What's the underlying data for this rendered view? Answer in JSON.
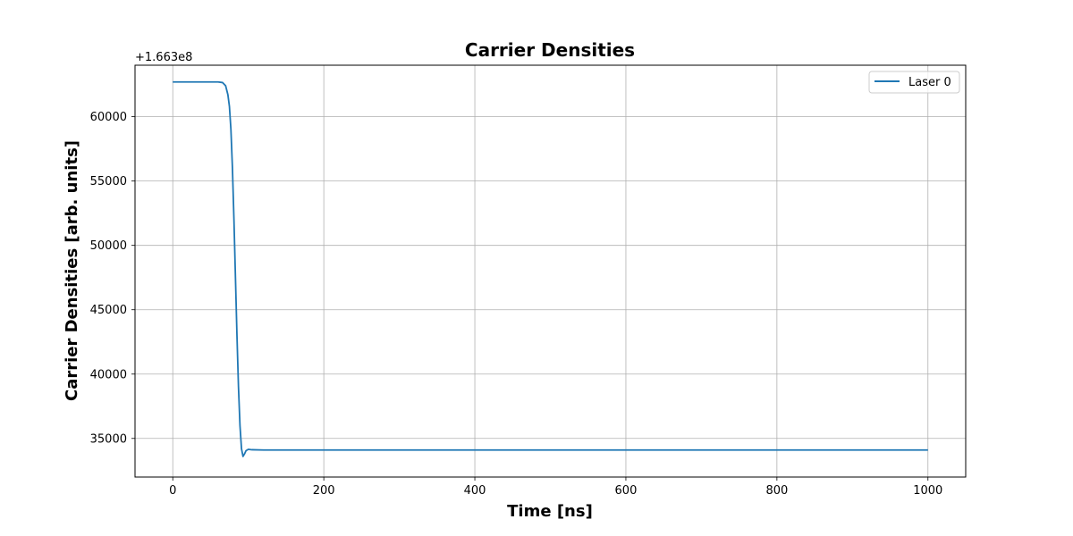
{
  "chart_data": {
    "type": "line",
    "title": "Carrier Densities",
    "xlabel": "Time [ns]",
    "ylabel": "Carrier Densities [arb. units]",
    "offset_label": "+1.663e8",
    "xlim": [
      -50,
      1050
    ],
    "ylim": [
      32000,
      64000
    ],
    "xticks": [
      0,
      200,
      400,
      600,
      800,
      1000
    ],
    "yticks": [
      35000,
      40000,
      45000,
      50000,
      55000,
      60000
    ],
    "grid": true,
    "legend_position": "top-right",
    "series": [
      {
        "name": "Laser 0",
        "color": "#1f77b4",
        "x": [
          0,
          60,
          66,
          70,
          73,
          75,
          77,
          79,
          81,
          83,
          85,
          87,
          89,
          91,
          93,
          95,
          97,
          100,
          105,
          120,
          200,
          300,
          400,
          500,
          600,
          700,
          800,
          900,
          1000
        ],
        "y": [
          62700,
          62700,
          62650,
          62400,
          61700,
          60800,
          59000,
          56000,
          52000,
          47500,
          43000,
          39000,
          36000,
          34200,
          33600,
          33800,
          34050,
          34150,
          34120,
          34100,
          34100,
          34100,
          34100,
          34100,
          34100,
          34100,
          34100,
          34100,
          34100
        ]
      }
    ]
  }
}
